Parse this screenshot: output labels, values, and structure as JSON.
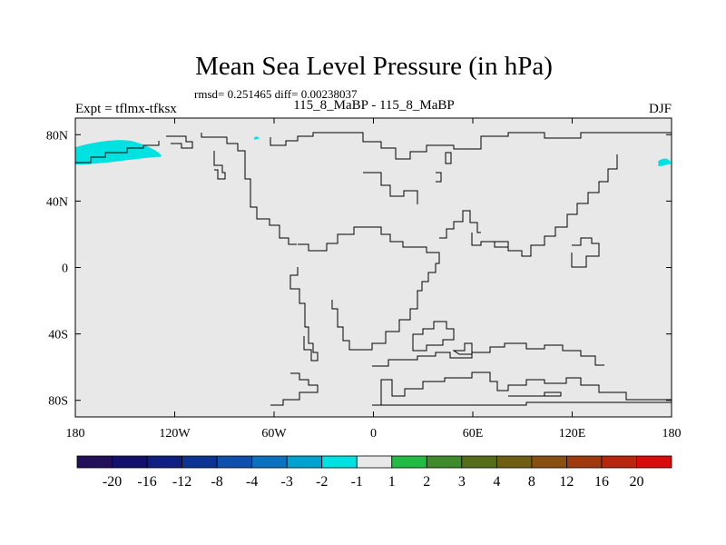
{
  "chart_data": {
    "type": "heatmap",
    "title": "Mean Sea Level Pressure (in hPa)",
    "stats": "rmsd= 0.251465 diff= 0.00238037",
    "left_label": "Expt = tflmx-tfksx",
    "center_label": "115_8_MaBP - 115_8_MaBP",
    "right_label": "DJF",
    "x_range": [
      -180,
      180
    ],
    "y_range": [
      -90,
      90
    ],
    "x_ticks": [
      {
        "value": -180,
        "label": "180"
      },
      {
        "value": -120,
        "label": "120W"
      },
      {
        "value": -60,
        "label": "60W"
      },
      {
        "value": 0,
        "label": "0"
      },
      {
        "value": 60,
        "label": "60E"
      },
      {
        "value": 120,
        "label": "120E"
      },
      {
        "value": 180,
        "label": "180"
      }
    ],
    "y_ticks": [
      {
        "value": 80,
        "label": "80N"
      },
      {
        "value": 40,
        "label": "40N"
      },
      {
        "value": 0,
        "label": "0"
      },
      {
        "value": -40,
        "label": "40S"
      },
      {
        "value": -80,
        "label": "80S"
      }
    ],
    "background_color": "#e8e8e8",
    "colorbar": {
      "colors": [
        "#22115a",
        "#14106e",
        "#0e1e84",
        "#0c3496",
        "#0d4fae",
        "#0a72c0",
        "#00a2d2",
        "#00e2e2",
        "#e8e8e8",
        "#22bb44",
        "#3f8a2a",
        "#566e1a",
        "#6e6010",
        "#8a5010",
        "#a03a0e",
        "#b8260e",
        "#d80c0c"
      ],
      "labels": [
        "-20",
        "-16",
        "-12",
        "-8",
        "-4",
        "-3",
        "-2",
        "-1",
        "1",
        "2",
        "3",
        "4",
        "8",
        "12",
        "16",
        "20"
      ]
    },
    "anomaly_regions": [
      {
        "name": "arctic-pacific-anomaly",
        "value_range": [
          -2,
          -1
        ],
        "color": "#00e2e2",
        "lon": [
          -180,
          -128
        ],
        "lat": [
          62,
          78
        ]
      },
      {
        "name": "greenland-anomaly",
        "value_range": [
          -2,
          -1
        ],
        "color": "#00e2e2",
        "lon": [
          -72,
          -69
        ],
        "lat": [
          77,
          79
        ]
      },
      {
        "name": "siberia-east-anomaly",
        "value_range": [
          -2,
          -1
        ],
        "color": "#00e2e2",
        "lon": [
          172,
          180
        ],
        "lat": [
          61,
          66
        ]
      }
    ]
  }
}
